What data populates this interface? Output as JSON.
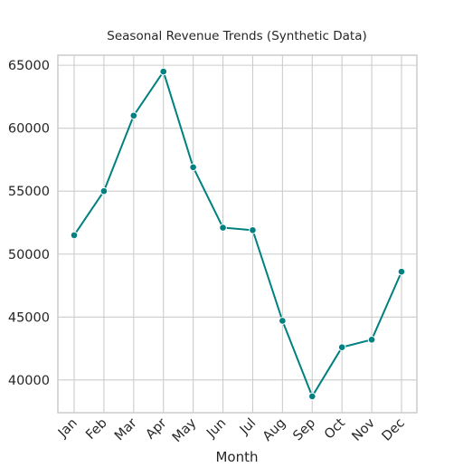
{
  "chart_data": {
    "type": "line",
    "title": "Seasonal Revenue Trends (Synthetic Data)",
    "xlabel": "Month",
    "ylabel": "",
    "categories": [
      "Jan",
      "Feb",
      "Mar",
      "Apr",
      "May",
      "Jun",
      "Jul",
      "Aug",
      "Sep",
      "Oct",
      "Nov",
      "Dec"
    ],
    "series": [
      {
        "values": [
          51500,
          55000,
          61000,
          64500,
          56900,
          52100,
          51900,
          44700,
          38700,
          42600,
          43200,
          48600
        ]
      }
    ],
    "ylim": [
      37400,
      65800
    ],
    "yticks": [
      40000,
      45000,
      50000,
      55000,
      60000,
      65000
    ],
    "grid": true,
    "line_color": "#008080",
    "grid_color": "#cccccc",
    "axis_color": "#cccccc",
    "text_color": "#262626"
  }
}
